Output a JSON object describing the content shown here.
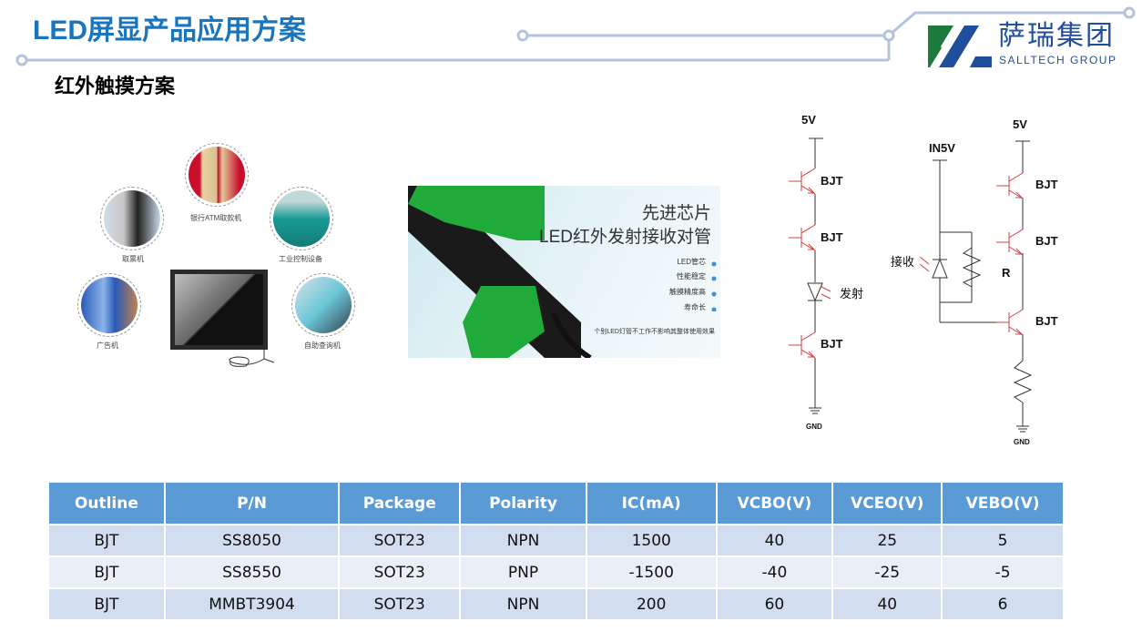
{
  "header": {
    "title": "LED屏显产品应用方案",
    "subtitle": "红外触摸方案"
  },
  "logo": {
    "cn": "萨瑞集团",
    "en": "SALLTECH GROUP",
    "colors": {
      "green": "#1e7a3c",
      "blue": "#1f4e9c"
    }
  },
  "applications": [
    {
      "label": "银行ATM取款机"
    },
    {
      "label": "取票机"
    },
    {
      "label": "工业控制设备"
    },
    {
      "label": "广告机"
    },
    {
      "label": "自助查询机"
    }
  ],
  "product_image": {
    "headline1": "先进芯片",
    "headline2": "LED红外发射接收对管",
    "features": [
      "LED管芯",
      "性能稳定",
      "触摸精度高",
      "寿命长"
    ],
    "note": "个别LED灯管不工作不影响其整体使用效果"
  },
  "schematic": {
    "vcc_left": "5V",
    "vcc_right": "5V",
    "in": "IN5V",
    "bjt": "BJT",
    "emit": "发射",
    "receive": "接收",
    "r": "R",
    "gnd": "GND"
  },
  "table": {
    "headers": [
      "Outline",
      "P/N",
      "Package",
      "Polarity",
      "IC(mA)",
      "VCBO(V)",
      "VCEO(V)",
      "VEBO(V)"
    ],
    "rows": [
      [
        "BJT",
        "SS8050",
        "SOT23",
        "NPN",
        "1500",
        "40",
        "25",
        "5"
      ],
      [
        "BJT",
        "SS8550",
        "SOT23",
        "PNP",
        "-1500",
        "-40",
        "-25",
        "-5"
      ],
      [
        "BJT",
        "MMBT3904",
        "SOT23",
        "NPN",
        "200",
        "60",
        "40",
        "6"
      ]
    ]
  },
  "colors": {
    "accent": "#1a75bc",
    "table_header": "#5b9bd5",
    "line": "#b4c0dc"
  }
}
